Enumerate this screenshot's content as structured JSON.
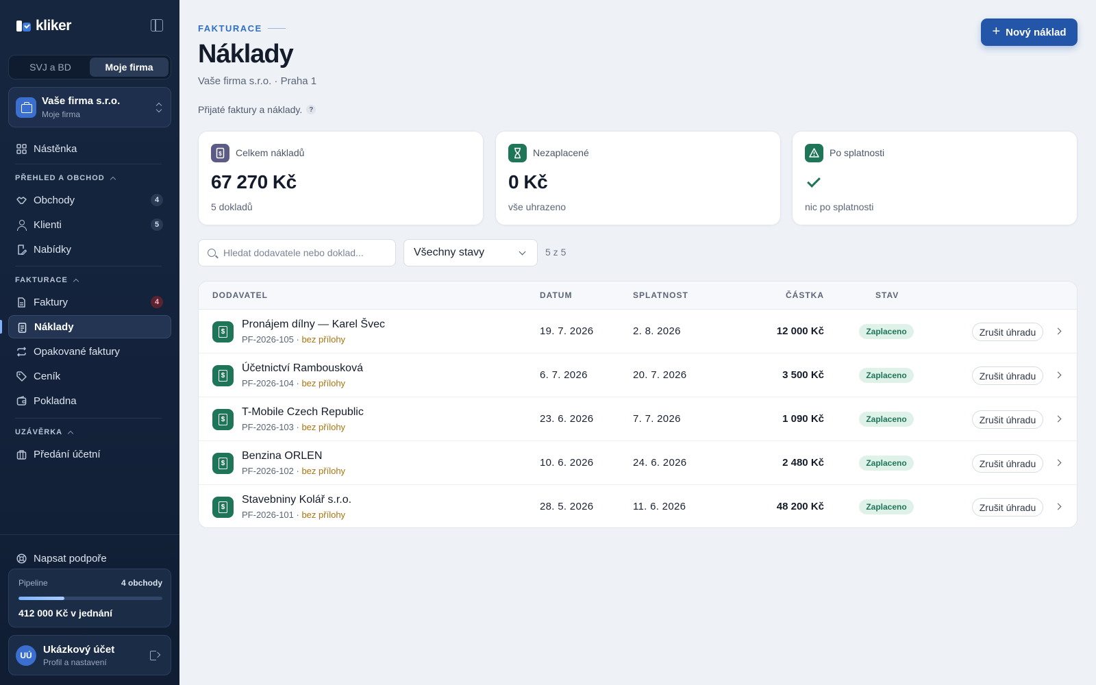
{
  "app": {
    "logo_text": "kliker"
  },
  "sidebar": {
    "segments": [
      {
        "label": "SVJ a BD",
        "active": false
      },
      {
        "label": "Moje firma",
        "active": true
      }
    ],
    "company": {
      "name": "Vaše firma s.r.o.",
      "sub": "Moje firma"
    },
    "dashboard": {
      "label": "Nástěnka",
      "icon": "grid-icon"
    },
    "sections": [
      {
        "title": "PŘEHLED A OBCHOD"
      },
      {
        "title": "FAKTURACE"
      },
      {
        "title": "UZÁVĚRKA"
      }
    ],
    "items": [
      {
        "label": "Obchody",
        "badge": "4",
        "icon": "handshake-icon"
      },
      {
        "label": "Klienti",
        "badge": "5",
        "icon": "users-icon"
      },
      {
        "label": "Nabídky",
        "icon": "edit-document-icon"
      },
      {
        "label": "Faktury",
        "badge": "4",
        "icon": "invoice-icon"
      },
      {
        "label": "Náklady",
        "active": true,
        "icon": "receipt-icon"
      },
      {
        "label": "Opakované faktury",
        "icon": "repeat-icon"
      },
      {
        "label": "Ceník",
        "icon": "tag-icon"
      },
      {
        "label": "Pokladna",
        "icon": "wallet-icon"
      },
      {
        "label": "Předání účetní",
        "icon": "briefcase-icon"
      }
    ],
    "support": {
      "label": "Napsat podpoře",
      "icon": "support-icon"
    },
    "pipeline": {
      "label": "Pipeline",
      "count": "4 obchody",
      "progress": 0.32,
      "sum": "412 000 Kč v jednání"
    },
    "account": {
      "initials": "UÚ",
      "name": "Ukázkový účet",
      "sub": "Profil a nastavení"
    }
  },
  "header": {
    "eyebrow": "FAKTURACE",
    "title": "Náklady",
    "subtitle": "Vaše firma s.r.o. · Praha 1",
    "description": "Přijaté faktury a náklady.",
    "help": "?",
    "new_button": "Nový náklad"
  },
  "cards": [
    {
      "label": "Celkem nákladů",
      "value": "67 270 Kč",
      "sub": "5 dokladů",
      "icon": "receipt-icon",
      "color": "#5c5a86"
    },
    {
      "label": "Nezaplacené",
      "value": "0 Kč",
      "sub": "vše uhrazeno",
      "icon": "hourglass-icon",
      "color": "#1f7558"
    },
    {
      "label": "Po splatnosti",
      "value": "",
      "sub": "nic po splatnosti",
      "icon": "warning-icon",
      "color": "#1f7558"
    }
  ],
  "filters": {
    "search_placeholder": "Hledat dodavatele nebo doklad...",
    "status_selected": "Všechny stavy",
    "count": "5 z 5"
  },
  "table": {
    "columns": {
      "supplier": "DODAVATEL",
      "date": "DATUM",
      "due": "SPLATNOST",
      "amount": "ČÁSTKA",
      "status": "STAV"
    },
    "undo_label": "Zrušit úhradu",
    "rows": [
      {
        "supplier": "Pronájem dílny — Karel Švec",
        "doc": "PF-2026-105",
        "sep": " · ",
        "attachment": "bez přílohy",
        "date": "19. 7. 2026",
        "due": "2. 8. 2026",
        "amount": "12 000 Kč",
        "status": "Zaplaceno"
      },
      {
        "supplier": "Účetnictví Rambousková",
        "doc": "PF-2026-104",
        "sep": " · ",
        "attachment": "bez přílohy",
        "date": "6. 7. 2026",
        "due": "20. 7. 2026",
        "amount": "3 500 Kč",
        "status": "Zaplaceno"
      },
      {
        "supplier": "T-Mobile Czech Republic",
        "doc": "PF-2026-103",
        "sep": " · ",
        "attachment": "bez přílohy",
        "date": "23. 6. 2026",
        "due": "7. 7. 2026",
        "amount": "1 090 Kč",
        "status": "Zaplaceno"
      },
      {
        "supplier": "Benzina ORLEN",
        "doc": "PF-2026-102",
        "sep": " · ",
        "attachment": "bez přílohy",
        "date": "10. 6. 2026",
        "due": "24. 6. 2026",
        "amount": "2 480 Kč",
        "status": "Zaplaceno"
      },
      {
        "supplier": "Stavebniny Kolář s.r.o.",
        "doc": "PF-2026-101",
        "sep": " · ",
        "attachment": "bez přílohy",
        "date": "28. 5. 2026",
        "due": "11. 6. 2026",
        "amount": "48 200 Kč",
        "status": "Zaplaceno"
      }
    ]
  }
}
